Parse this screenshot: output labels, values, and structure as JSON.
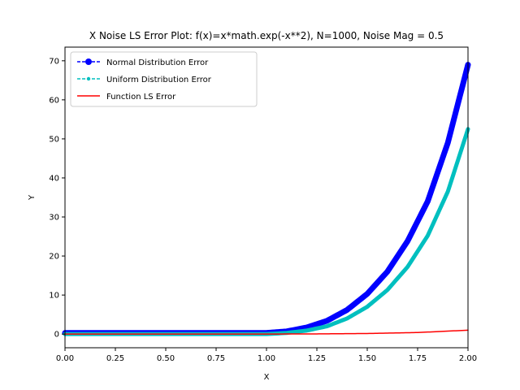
{
  "chart_data": {
    "type": "line",
    "title": "X Noise LS Error Plot: f(x)=x*math.exp(-x**2), N=1000, Noise Mag = 0.5",
    "xlabel": "X",
    "ylabel": "Y",
    "xlim": [
      0,
      2
    ],
    "ylim": [
      -3.5,
      73.5
    ],
    "xticks": [
      "0.00",
      "0.25",
      "0.50",
      "0.75",
      "1.00",
      "1.25",
      "1.50",
      "1.75",
      "2.00"
    ],
    "yticks": [
      "0",
      "10",
      "20",
      "30",
      "40",
      "50",
      "60",
      "70"
    ],
    "legend_position": "upper-left",
    "series": [
      {
        "name": "Normal Distribution Error",
        "color": "#0000ff",
        "style": "dashed-marker-circle",
        "x": [
          0.0,
          0.25,
          0.5,
          0.75,
          1.0,
          1.1,
          1.2,
          1.3,
          1.4,
          1.5,
          1.6,
          1.7,
          1.8,
          1.9,
          2.0
        ],
        "y": [
          0.3,
          0.3,
          0.3,
          0.3,
          0.3,
          0.7,
          1.7,
          3.4,
          6.2,
          10.3,
          16.0,
          23.8,
          34.0,
          49.0,
          69.0
        ]
      },
      {
        "name": "Uniform Distribution Error",
        "color": "#00bfbf",
        "style": "dashed-marker-dot",
        "x": [
          0.0,
          0.25,
          0.5,
          0.75,
          1.0,
          1.1,
          1.2,
          1.3,
          1.4,
          1.5,
          1.6,
          1.7,
          1.8,
          1.9,
          2.0
        ],
        "y": [
          0.0,
          0.0,
          0.0,
          0.0,
          0.0,
          0.3,
          0.9,
          2.0,
          4.0,
          7.0,
          11.3,
          17.2,
          25.2,
          36.5,
          52.5
        ]
      },
      {
        "name": "Function LS Error",
        "color": "#ff0000",
        "style": "solid",
        "x": [
          0.0,
          0.25,
          0.5,
          0.75,
          1.0,
          1.25,
          1.5,
          1.75,
          2.0
        ],
        "y": [
          0.0,
          0.0,
          0.0,
          0.0,
          0.01,
          0.05,
          0.15,
          0.4,
          1.0
        ]
      }
    ]
  }
}
